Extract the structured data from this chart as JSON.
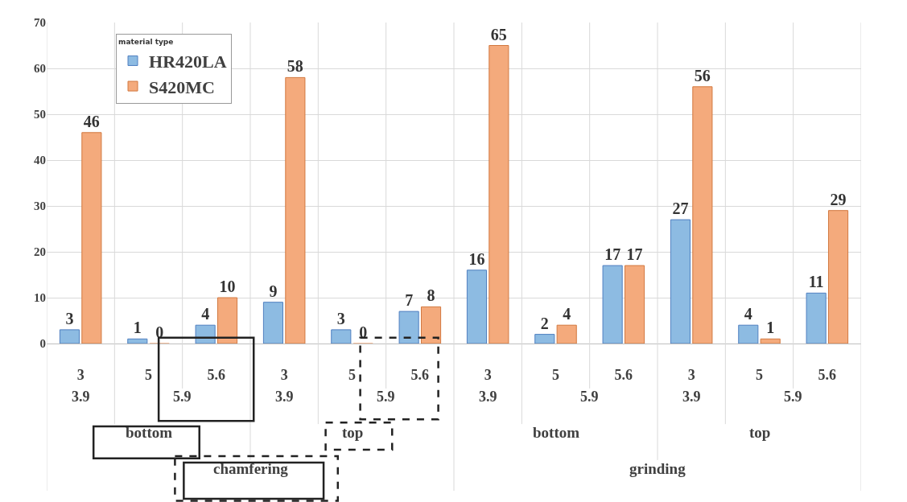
{
  "chart_data": {
    "type": "bar",
    "categories": [
      "3",
      "5",
      "5.6",
      "3",
      "5",
      "5.6",
      "3",
      "5",
      "5.6",
      "3",
      "5",
      "5.6"
    ],
    "series": [
      {
        "name": "HR420LA",
        "color": "#8dbbe2",
        "values": [
          3,
          1,
          4,
          9,
          3,
          7,
          16,
          2,
          17,
          27,
          4,
          11
        ]
      },
      {
        "name": "S420MC",
        "color": "#f4aa7c",
        "values": [
          46,
          0,
          10,
          58,
          0,
          8,
          65,
          4,
          17,
          56,
          1,
          29
        ]
      }
    ],
    "legend_title": "material type",
    "annotations": [
      "3.9",
      "5.9",
      "3.9",
      "5.9",
      "3.9",
      "5.9",
      "3.9",
      "5.9",
      "bottom",
      "top",
      "bottom",
      "top",
      "chamfering",
      "grinding"
    ],
    "ylim": [
      0,
      70
    ],
    "yticks": [
      0,
      10,
      20,
      30,
      40,
      50,
      60,
      70
    ],
    "grid": true,
    "legend": "top left",
    "data_labels": true
  }
}
